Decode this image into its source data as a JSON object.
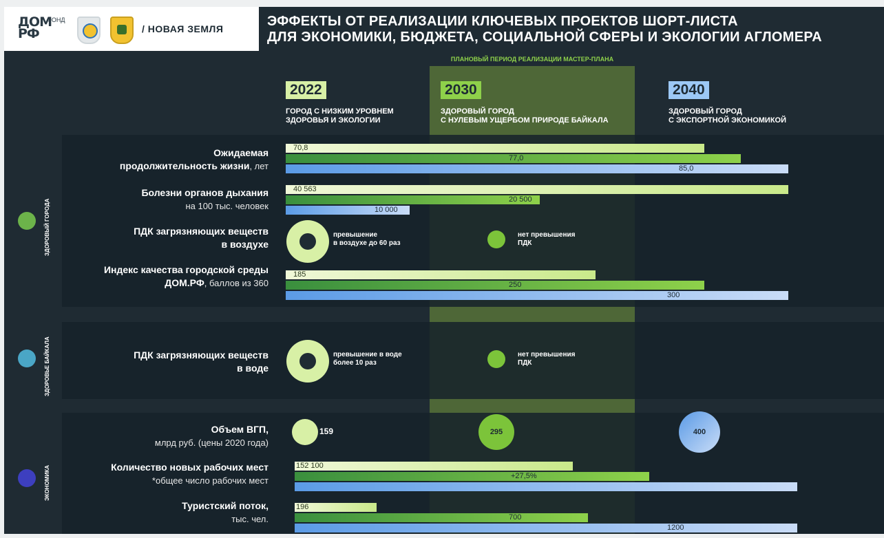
{
  "header": {
    "logo_text": "ДОМ\nРФ",
    "logo_fond": "ФОНД",
    "brand": "/ НОВАЯ ЗЕМЛЯ",
    "title": "ЭФФЕКТЫ ОТ РЕАЛИЗАЦИИ КЛЮЧЕВЫХ ПРОЕКТОВ ШОРТ-ЛИСТА\nДЛЯ ЭКОНОМИКИ, БЮДЖЕТА, СОЦИАЛЬНОЙ СФЕРЫ И ЭКОЛОГИИ АГЛОМЕРА"
  },
  "band_label": "ПЛАНОВЫЙ ПЕРИОД РЕАЛИЗАЦИИ МАСТЕР-ПЛАНА",
  "years": [
    {
      "year": "2022",
      "desc": "ГОРОД С НИЗКИМ УРОВНЕМ\nЗДОРОВЬЯ И ЭКОЛОГИИ",
      "color": "#d8f0a6"
    },
    {
      "year": "2030",
      "desc": "ЗДОРОВЫЙ ГОРОД\nС НУЛЕВЫМ УЩЕРБОМ ПРИРОДЕ БАЙКАЛА",
      "color": "#8ed14a"
    },
    {
      "year": "2040",
      "desc": "ЗДОРОВЫЙ ГОРОД\nС ЭКСПОРТНОЙ ЭКОНОМИКОЙ",
      "color": "#9cc8f5"
    }
  ],
  "sections": {
    "health": "ЗДОРОВЫЙ ГОРОДА",
    "baikal": "ЗДОРОВЬЕ БАЙКАЛА",
    "economy": "ЭКОНОМИКА"
  },
  "colors": {
    "c2022": "#d8f0a6",
    "c2030": "#7cc43a",
    "c2040": "#9cc8f5",
    "band": "#5f7c3a"
  },
  "rows": {
    "life": {
      "label": "Ожидаемая\nпродолжительность жизни",
      "unit": ", лет"
    },
    "resp": {
      "label": "Болезни органов дыхания",
      "sub": "на 100 тыс. человек"
    },
    "air": {
      "label": "ПДК загрязняющих веществ\nв воздухе",
      "note_2022": "превышение\nв воздухе до 60 раз",
      "note_2030": "нет превышения\nПДК"
    },
    "index": {
      "label": "Индекс качества городской среды\nДОМ.РФ",
      "sub": ", баллов из 360"
    },
    "water": {
      "label": "ПДК загрязняющих веществ\nв воде",
      "note_2022": "превышение в воде\nболее 10 раз",
      "note_2030": "нет превышения\nПДК"
    },
    "gdp": {
      "label": "Объем ВГП,",
      "sub": "млрд руб. (цены 2020 года)"
    },
    "jobs": {
      "label": "Количество новых рабочих мест",
      "sub": "*общее число рабочих мест"
    },
    "tourism": {
      "label": "Туристский поток,",
      "sub": "тыс. чел."
    }
  },
  "chart_data": [
    {
      "type": "bar",
      "title": "Ожидаемая продолжительность жизни, лет",
      "categories": [
        "2022",
        "2030",
        "2040"
      ],
      "values": [
        70.8,
        77.0,
        85.0
      ],
      "labels": [
        "70,8",
        "77,0",
        "85,0"
      ]
    },
    {
      "type": "bar",
      "title": "Болезни органов дыхания на 100 тыс. человек",
      "categories": [
        "2022",
        "2030",
        "2040"
      ],
      "values": [
        40563,
        20500,
        10000
      ],
      "labels": [
        "40 563",
        "20 500",
        "10 000"
      ]
    },
    {
      "type": "bar",
      "title": "Индекс качества городской среды ДОМ.РФ, баллов из 360",
      "categories": [
        "2022",
        "2030",
        "2040"
      ],
      "values": [
        185,
        250,
        300
      ],
      "labels": [
        "185",
        "250",
        "300"
      ]
    },
    {
      "type": "bubble",
      "title": "Объем ВГП, млрд руб. (цены 2020 года)",
      "categories": [
        "2022",
        "2030",
        "2040"
      ],
      "values": [
        159,
        295,
        400
      ],
      "labels": [
        "159",
        "295",
        "400"
      ]
    },
    {
      "type": "bar",
      "title": "Количество новых рабочих мест",
      "categories": [
        "2022",
        "2030",
        "2040"
      ],
      "values": [
        152100,
        193928,
        275000
      ],
      "labels": [
        "152 100",
        "+27,5%",
        ""
      ]
    },
    {
      "type": "bar",
      "title": "Туристский поток, тыс. чел.",
      "categories": [
        "2022",
        "2030",
        "2040"
      ],
      "values": [
        196,
        700,
        1200
      ],
      "labels": [
        "196",
        "700",
        "1200"
      ]
    }
  ]
}
